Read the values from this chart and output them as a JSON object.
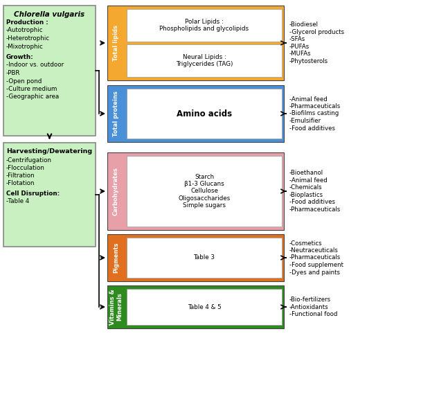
{
  "left_box1_title": "Chlorella vulgaris",
  "left_box1_lines": [
    [
      "Production :",
      true
    ],
    [
      "-Autotrophic",
      false
    ],
    [
      "-Heterotrophic",
      false
    ],
    [
      "-Mixotrophic",
      false
    ],
    [
      "",
      false
    ],
    [
      "Growth:",
      true
    ],
    [
      "-Indoor vs. outdoor",
      false
    ],
    [
      "-PBR",
      false
    ],
    [
      "-Open pond",
      false
    ],
    [
      "-Culture medium",
      false
    ],
    [
      "-Geographic area",
      false
    ]
  ],
  "left_box2_title": "Harvesting/Dewatering",
  "left_box2_lines": [
    [
      "-Centrifugation",
      false
    ],
    [
      "-Flocculation",
      false
    ],
    [
      "-Filtration",
      false
    ],
    [
      "-Flotation",
      false
    ],
    [
      "",
      false
    ],
    [
      "Cell Disruption:",
      true
    ],
    [
      "-Table 4",
      false
    ]
  ],
  "sections": [
    {
      "label": "Total lipids",
      "color": "#F5A830",
      "inner_boxes": [
        "Neural Lipids :\nTriglycerides (TAG)",
        "Polar Lipids :\nPhospholipids and glycolipids"
      ],
      "outputs": [
        "-Biodiesel",
        "-Glycerol products",
        "-SFAs",
        "-PUFAs",
        "-MUFAs",
        "-Phytosterols"
      ]
    },
    {
      "label": "Total proteins",
      "color": "#4A90D9",
      "inner_boxes": [
        "Amino acids"
      ],
      "outputs": [
        "-Animal feed",
        "-Pharmaceuticals",
        "-Biofilms casting",
        "-Emulsifier",
        "-Food additives"
      ]
    },
    {
      "label": "Carbohydrates",
      "color": "#E8A0A8",
      "inner_boxes": [
        "Starch\nβ1-3 Glucans\nCellulose\nOligosaccharides\nSimple sugars"
      ],
      "outputs": [
        "-Bioethanol",
        "-Animal feed",
        "-Chemicals",
        "-Bioplastics",
        "-Food additives",
        "-Pharmaceuticals"
      ]
    },
    {
      "label": "Pigments",
      "color": "#E07020",
      "inner_boxes": [
        "Table 3"
      ],
      "outputs": [
        "-Cosmetics",
        "-Neutraceuticals",
        "-Pharmaceuticals",
        "-Food supplement",
        "-Dyes and paints"
      ]
    },
    {
      "label": "Vitamins &\nMinerals",
      "color": "#2E8B20",
      "inner_boxes": [
        "Table 4 & 5"
      ],
      "outputs": [
        "-Bio-fertilizers",
        "-Antioxidants",
        "-Functional food"
      ]
    }
  ],
  "left_box_color": "#C8F0C0",
  "left_box_border": "#888888",
  "bg_color": "#FFFFFF"
}
